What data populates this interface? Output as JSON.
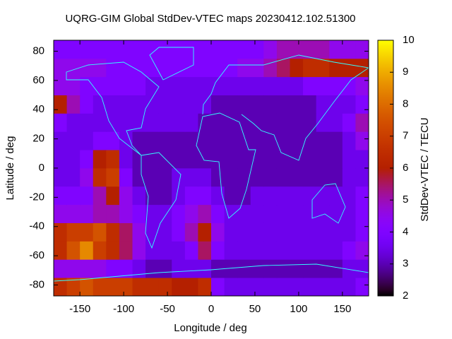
{
  "chart_data": {
    "type": "heatmap",
    "title": "UQRG-GIM Global StdDev-VTEC maps 20230412.102.51300",
    "x_label": "Longitude / deg",
    "y_label": "Latitude / deg",
    "colorbar_label": "StdDev-VTEC / TECU",
    "colormap": "gnuplot",
    "xbins": [
      -180,
      -165,
      -150,
      -135,
      -120,
      -105,
      -90,
      -75,
      -60,
      -45,
      -30,
      -15,
      0,
      15,
      30,
      45,
      60,
      75,
      90,
      105,
      120,
      135,
      150,
      165,
      180
    ],
    "ybins": [
      -87.5,
      -75,
      -62.5,
      -50,
      -37.5,
      -25,
      -12.5,
      0,
      12.5,
      25,
      37.5,
      50,
      62.5,
      75,
      87.5
    ],
    "values": [
      [
        6.5,
        7,
        7.5,
        7,
        7,
        7,
        6.5,
        6.5,
        6.5,
        6,
        6,
        6.5,
        4,
        3.5,
        3.5,
        3.5,
        3.5,
        3.5,
        3.5,
        3.5,
        3.5,
        3.5,
        3.5,
        4
      ],
      [
        4.5,
        4.5,
        4.5,
        4.5,
        4,
        4,
        3.5,
        3,
        3,
        3.5,
        3.5,
        3.5,
        3,
        3,
        3,
        3,
        3,
        3,
        3,
        3,
        3,
        3,
        3.5,
        3.5
      ],
      [
        6.5,
        7.5,
        8.5,
        7,
        6.5,
        5.5,
        4.5,
        3.5,
        3.5,
        3.5,
        4,
        5.5,
        4,
        3.5,
        3.5,
        3.5,
        3.5,
        3.5,
        3.5,
        3.5,
        3.5,
        3.5,
        4,
        4.5
      ],
      [
        6.5,
        7,
        7,
        7.5,
        6.5,
        5.5,
        4.5,
        3.5,
        3.5,
        4,
        5,
        6,
        4.5,
        3.5,
        3.5,
        3.5,
        3.5,
        3.5,
        3.5,
        3.5,
        3.5,
        3.5,
        3.5,
        4
      ],
      [
        4.5,
        4.5,
        4.5,
        5,
        5,
        4.5,
        4,
        3.5,
        3.5,
        4,
        4.5,
        5,
        4,
        3.5,
        3.5,
        3.5,
        3.5,
        3.5,
        3.5,
        3.5,
        3.5,
        3.5,
        3.5,
        4
      ],
      [
        4,
        4,
        4,
        5,
        6,
        4.5,
        3.5,
        3,
        3,
        3.5,
        4,
        4,
        3.5,
        3,
        3,
        3.5,
        3.5,
        3.5,
        3.5,
        3.5,
        3.5,
        3.5,
        3.5,
        4
      ],
      [
        3.5,
        3.5,
        4.5,
        6.5,
        7,
        4,
        3,
        3,
        3,
        3.5,
        3.5,
        3.5,
        3,
        3,
        3,
        3,
        3,
        3,
        3,
        3,
        3,
        3,
        3.5,
        3.5
      ],
      [
        3.5,
        3.5,
        4,
        6,
        6.5,
        3.5,
        3,
        3,
        3,
        3,
        3,
        3,
        3,
        3,
        3,
        3,
        3,
        3,
        3,
        3,
        3,
        3,
        3.5,
        3.5
      ],
      [
        3.5,
        3.5,
        3.5,
        4,
        4,
        3.5,
        3,
        3,
        3,
        3,
        3,
        3,
        3,
        3,
        3,
        3,
        3,
        3,
        3,
        3,
        3,
        3,
        3.5,
        4.5
      ],
      [
        4,
        3.5,
        3.5,
        3.5,
        3.5,
        3.5,
        3.5,
        3.5,
        3.5,
        3.5,
        3.5,
        3,
        3,
        3,
        3,
        3,
        3,
        3,
        3,
        3,
        3.5,
        3.5,
        4,
        5
      ],
      [
        6,
        5,
        4,
        3.5,
        3.5,
        3.5,
        3.5,
        3.5,
        3.5,
        3.5,
        3.5,
        3.5,
        3,
        3,
        3,
        3,
        3,
        3,
        3,
        3,
        3.5,
        3.5,
        3.5,
        4
      ],
      [
        4.5,
        4.5,
        4,
        4,
        4,
        4,
        4,
        3.5,
        3.5,
        3.5,
        3.5,
        3.5,
        3.5,
        3.5,
        3.5,
        3.5,
        3.5,
        3.5,
        3.5,
        4,
        4,
        4,
        4,
        4.5
      ],
      [
        4.5,
        4.5,
        4.5,
        4.5,
        4,
        4,
        4,
        4,
        4,
        4,
        4,
        4,
        4,
        4,
        4.5,
        4.5,
        5,
        5.5,
        6,
        6.5,
        6.5,
        6,
        6,
        6
      ],
      [
        4,
        4,
        4,
        4,
        4,
        4,
        4,
        4,
        4,
        4,
        4,
        4,
        4,
        4,
        4,
        4,
        4.5,
        5,
        5,
        5,
        5,
        4.5,
        4.5,
        4.5
      ]
    ],
    "xlim": [
      -180,
      180
    ],
    "ylim": [
      -87.5,
      87.5
    ],
    "xticks": [
      -150,
      -100,
      -50,
      0,
      50,
      100,
      150
    ],
    "yticks": [
      -80,
      -60,
      -40,
      -20,
      0,
      20,
      40,
      60,
      80
    ],
    "zlim": [
      2,
      10
    ],
    "zticks": [
      2,
      3,
      4,
      5,
      6,
      7,
      8,
      9,
      10
    ]
  }
}
